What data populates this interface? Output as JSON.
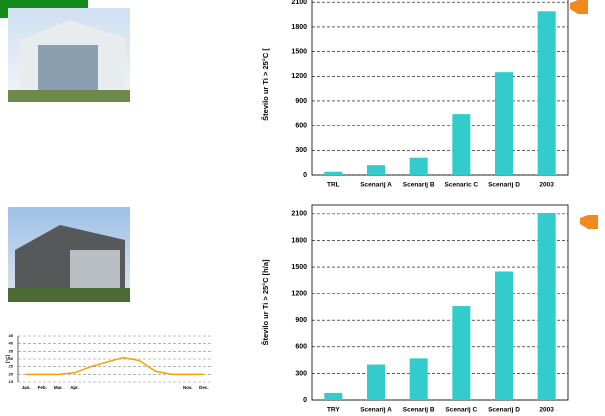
{
  "chart_data": [
    {
      "type": "bar",
      "ylabel": "Število ur Ti > 25°C [",
      "categories": [
        "TRL",
        "Scenarij A",
        "Scenarij B",
        "Scenaric C",
        "Scenarij D",
        "2003"
      ],
      "values": [
        40,
        120,
        210,
        740,
        1250,
        1990
      ],
      "color": "#33cccc",
      "ylim": [
        0,
        2200
      ],
      "yticks": [
        0,
        300,
        600,
        900,
        1200,
        1500,
        1800,
        2100
      ],
      "grid": true
    },
    {
      "type": "bar",
      "ylabel": "Število ur Ti > 25°C [h/a]",
      "categories": [
        "TRY",
        "Scenarij A",
        "Scenarij B",
        "Scenarij C",
        "Scenarij D",
        "2003"
      ],
      "values": [
        80,
        400,
        470,
        1060,
        1450,
        2110
      ],
      "color": "#33cccc",
      "ylim": [
        0,
        2200
      ],
      "yticks": [
        0,
        300,
        600,
        900,
        1200,
        1500,
        1800,
        2100
      ],
      "grid": true
    },
    {
      "type": "line",
      "ylabel": "[°C]",
      "categories": [
        "Jan.",
        "Feb.",
        "Mar.",
        "Apr.",
        null,
        null,
        null,
        null,
        null,
        null,
        "Nov.",
        "Dec."
      ],
      "values": [
        20,
        20,
        20,
        21,
        25,
        28,
        31,
        29,
        22,
        20,
        20,
        20
      ],
      "color": "#f5a000",
      "ylim": [
        15,
        45
      ],
      "yticks": [
        15,
        20,
        25,
        30,
        35,
        40,
        45
      ],
      "grid": true
    }
  ]
}
